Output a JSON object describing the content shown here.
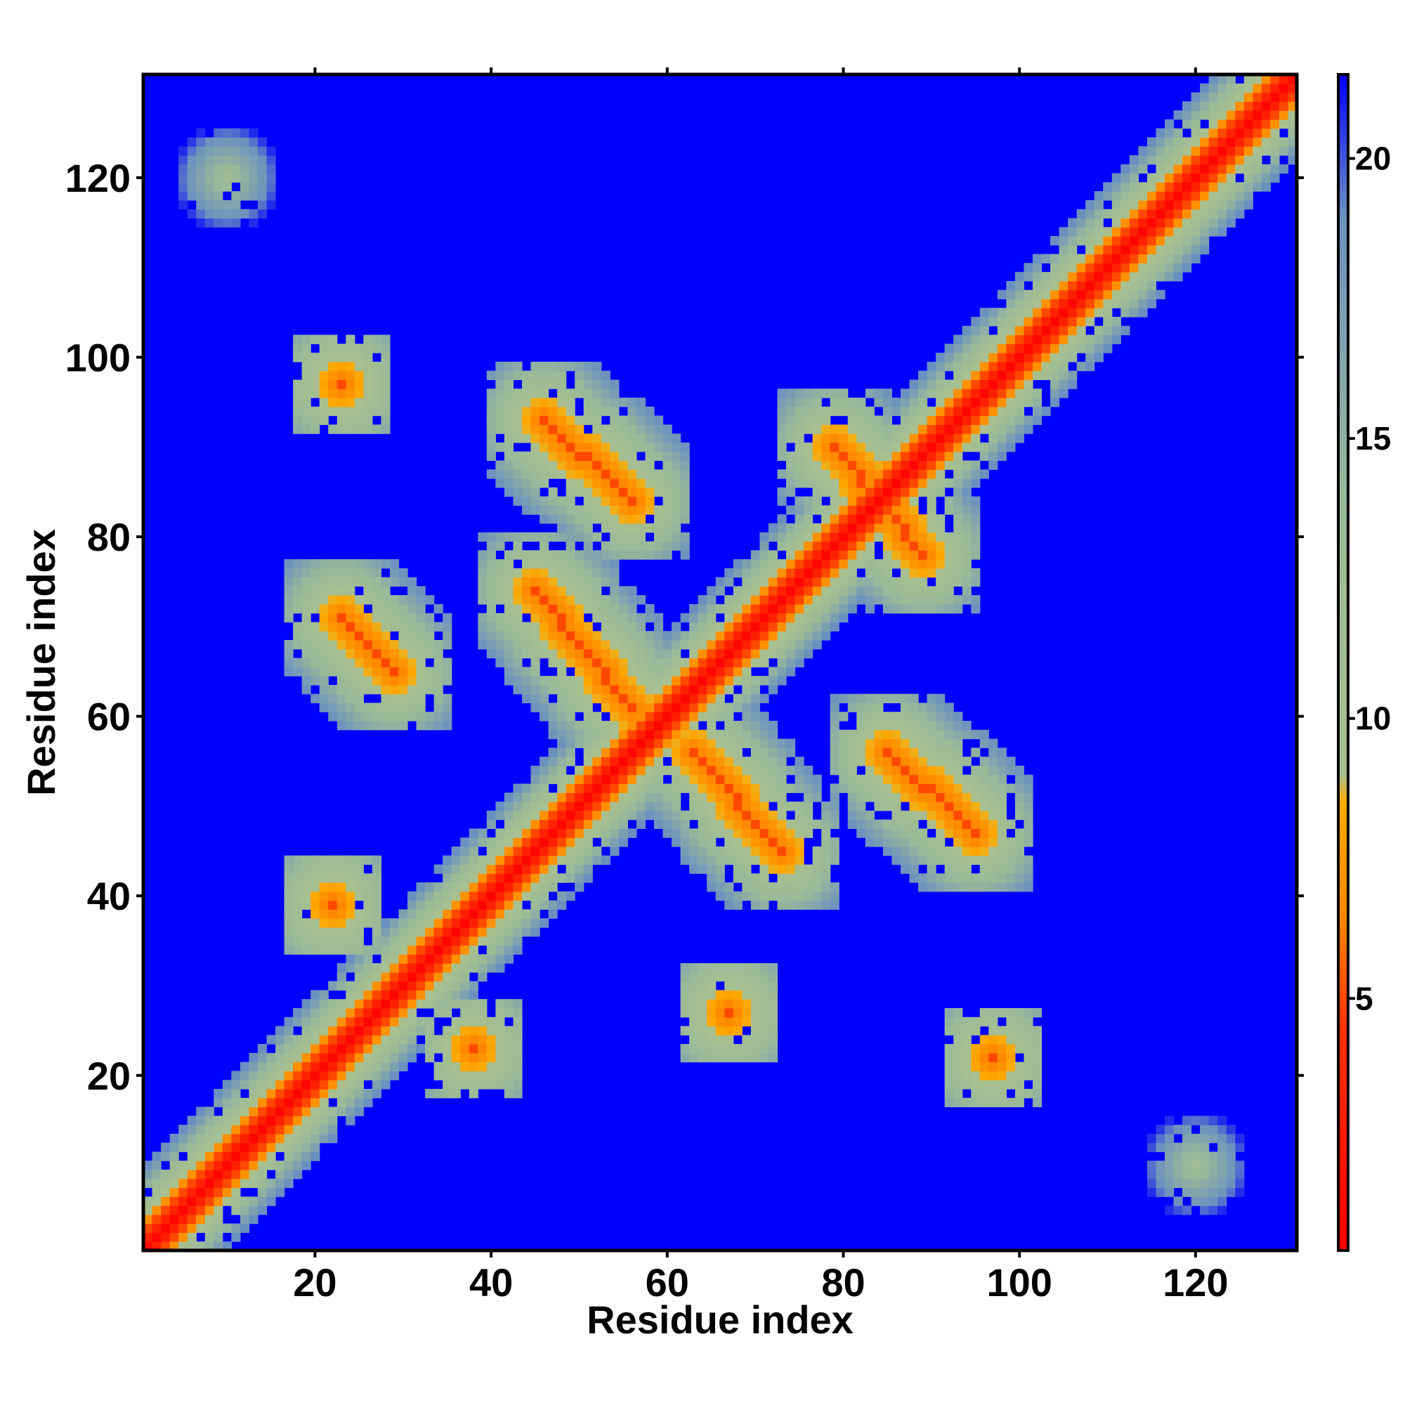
{
  "chart_data": {
    "type": "heatmap",
    "title": "",
    "xlabel": "Residue index",
    "ylabel": "Residue index",
    "xlim": [
      0.5,
      131.5
    ],
    "ylim": [
      0.5,
      131.5
    ],
    "x_ticks": [
      20,
      40,
      60,
      80,
      100,
      120
    ],
    "y_ticks": [
      20,
      40,
      60,
      80,
      100,
      120
    ],
    "n_residues": 131,
    "colorbar": {
      "range": [
        0.5,
        21.5
      ],
      "ticks": [
        5,
        10,
        15,
        20
      ],
      "stops": [
        {
          "value": 0.5,
          "color": "#ff0000"
        },
        {
          "value": 4.5,
          "color": "#ff3300"
        },
        {
          "value": 6.5,
          "color": "#ff8800"
        },
        {
          "value": 8.5,
          "color": "#ffaa00"
        },
        {
          "value": 9.0,
          "color": "#a8c08f"
        },
        {
          "value": 14.0,
          "color": "#9ab89a"
        },
        {
          "value": 19.0,
          "color": "#6a90c0"
        },
        {
          "value": 21.5,
          "color": "#0000ff"
        }
      ],
      "background_color": "#0000ff"
    },
    "contact_features": [
      {
        "name": "main-diagonal",
        "kind": "diagonal",
        "from": 1,
        "to": 131,
        "min_value": 1,
        "width": 9
      },
      {
        "name": "beta-sheet-A",
        "kind": "antidiagonal",
        "x_from": 46,
        "x_to": 56,
        "y_from": 93,
        "y_to": 84,
        "min_value": 5
      },
      {
        "name": "beta-sheet-B",
        "kind": "antidiagonal",
        "x_from": 45,
        "x_to": 56,
        "y_from": 74,
        "y_to": 61,
        "min_value": 5
      },
      {
        "name": "beta-sheet-C",
        "kind": "antidiagonal",
        "x_from": 63,
        "x_to": 73,
        "y_from": 56,
        "y_to": 45,
        "min_value": 5
      },
      {
        "name": "beta-sheet-D",
        "kind": "antidiagonal",
        "x_from": 85,
        "x_to": 95,
        "y_from": 56,
        "y_to": 47,
        "min_value": 5
      },
      {
        "name": "beta-sheet-E",
        "kind": "antidiagonal",
        "x_from": 79,
        "x_to": 89,
        "y_from": 90,
        "y_to": 78,
        "min_value": 5
      },
      {
        "name": "beta-sheet-F",
        "kind": "antidiagonal",
        "x_from": 23,
        "x_to": 29,
        "y_from": 71,
        "y_to": 65,
        "min_value": 5
      },
      {
        "name": "contact-patch-1",
        "kind": "patch",
        "x": 23,
        "y": 97,
        "min_value": 5
      },
      {
        "name": "contact-patch-2",
        "kind": "patch",
        "x": 97,
        "y": 22,
        "min_value": 5
      },
      {
        "name": "contact-patch-3",
        "kind": "patch",
        "x": 67,
        "y": 27,
        "min_value": 5
      },
      {
        "name": "contact-patch-4",
        "kind": "patch",
        "x": 38,
        "y": 23,
        "min_value": 5
      },
      {
        "name": "contact-patch-5",
        "kind": "patch",
        "x": 22,
        "y": 39,
        "min_value": 5
      },
      {
        "name": "corner-patch-1",
        "kind": "patch",
        "x": 10,
        "y": 120,
        "min_value": 12
      },
      {
        "name": "corner-patch-2",
        "kind": "patch",
        "x": 120,
        "y": 10,
        "min_value": 12
      }
    ]
  }
}
